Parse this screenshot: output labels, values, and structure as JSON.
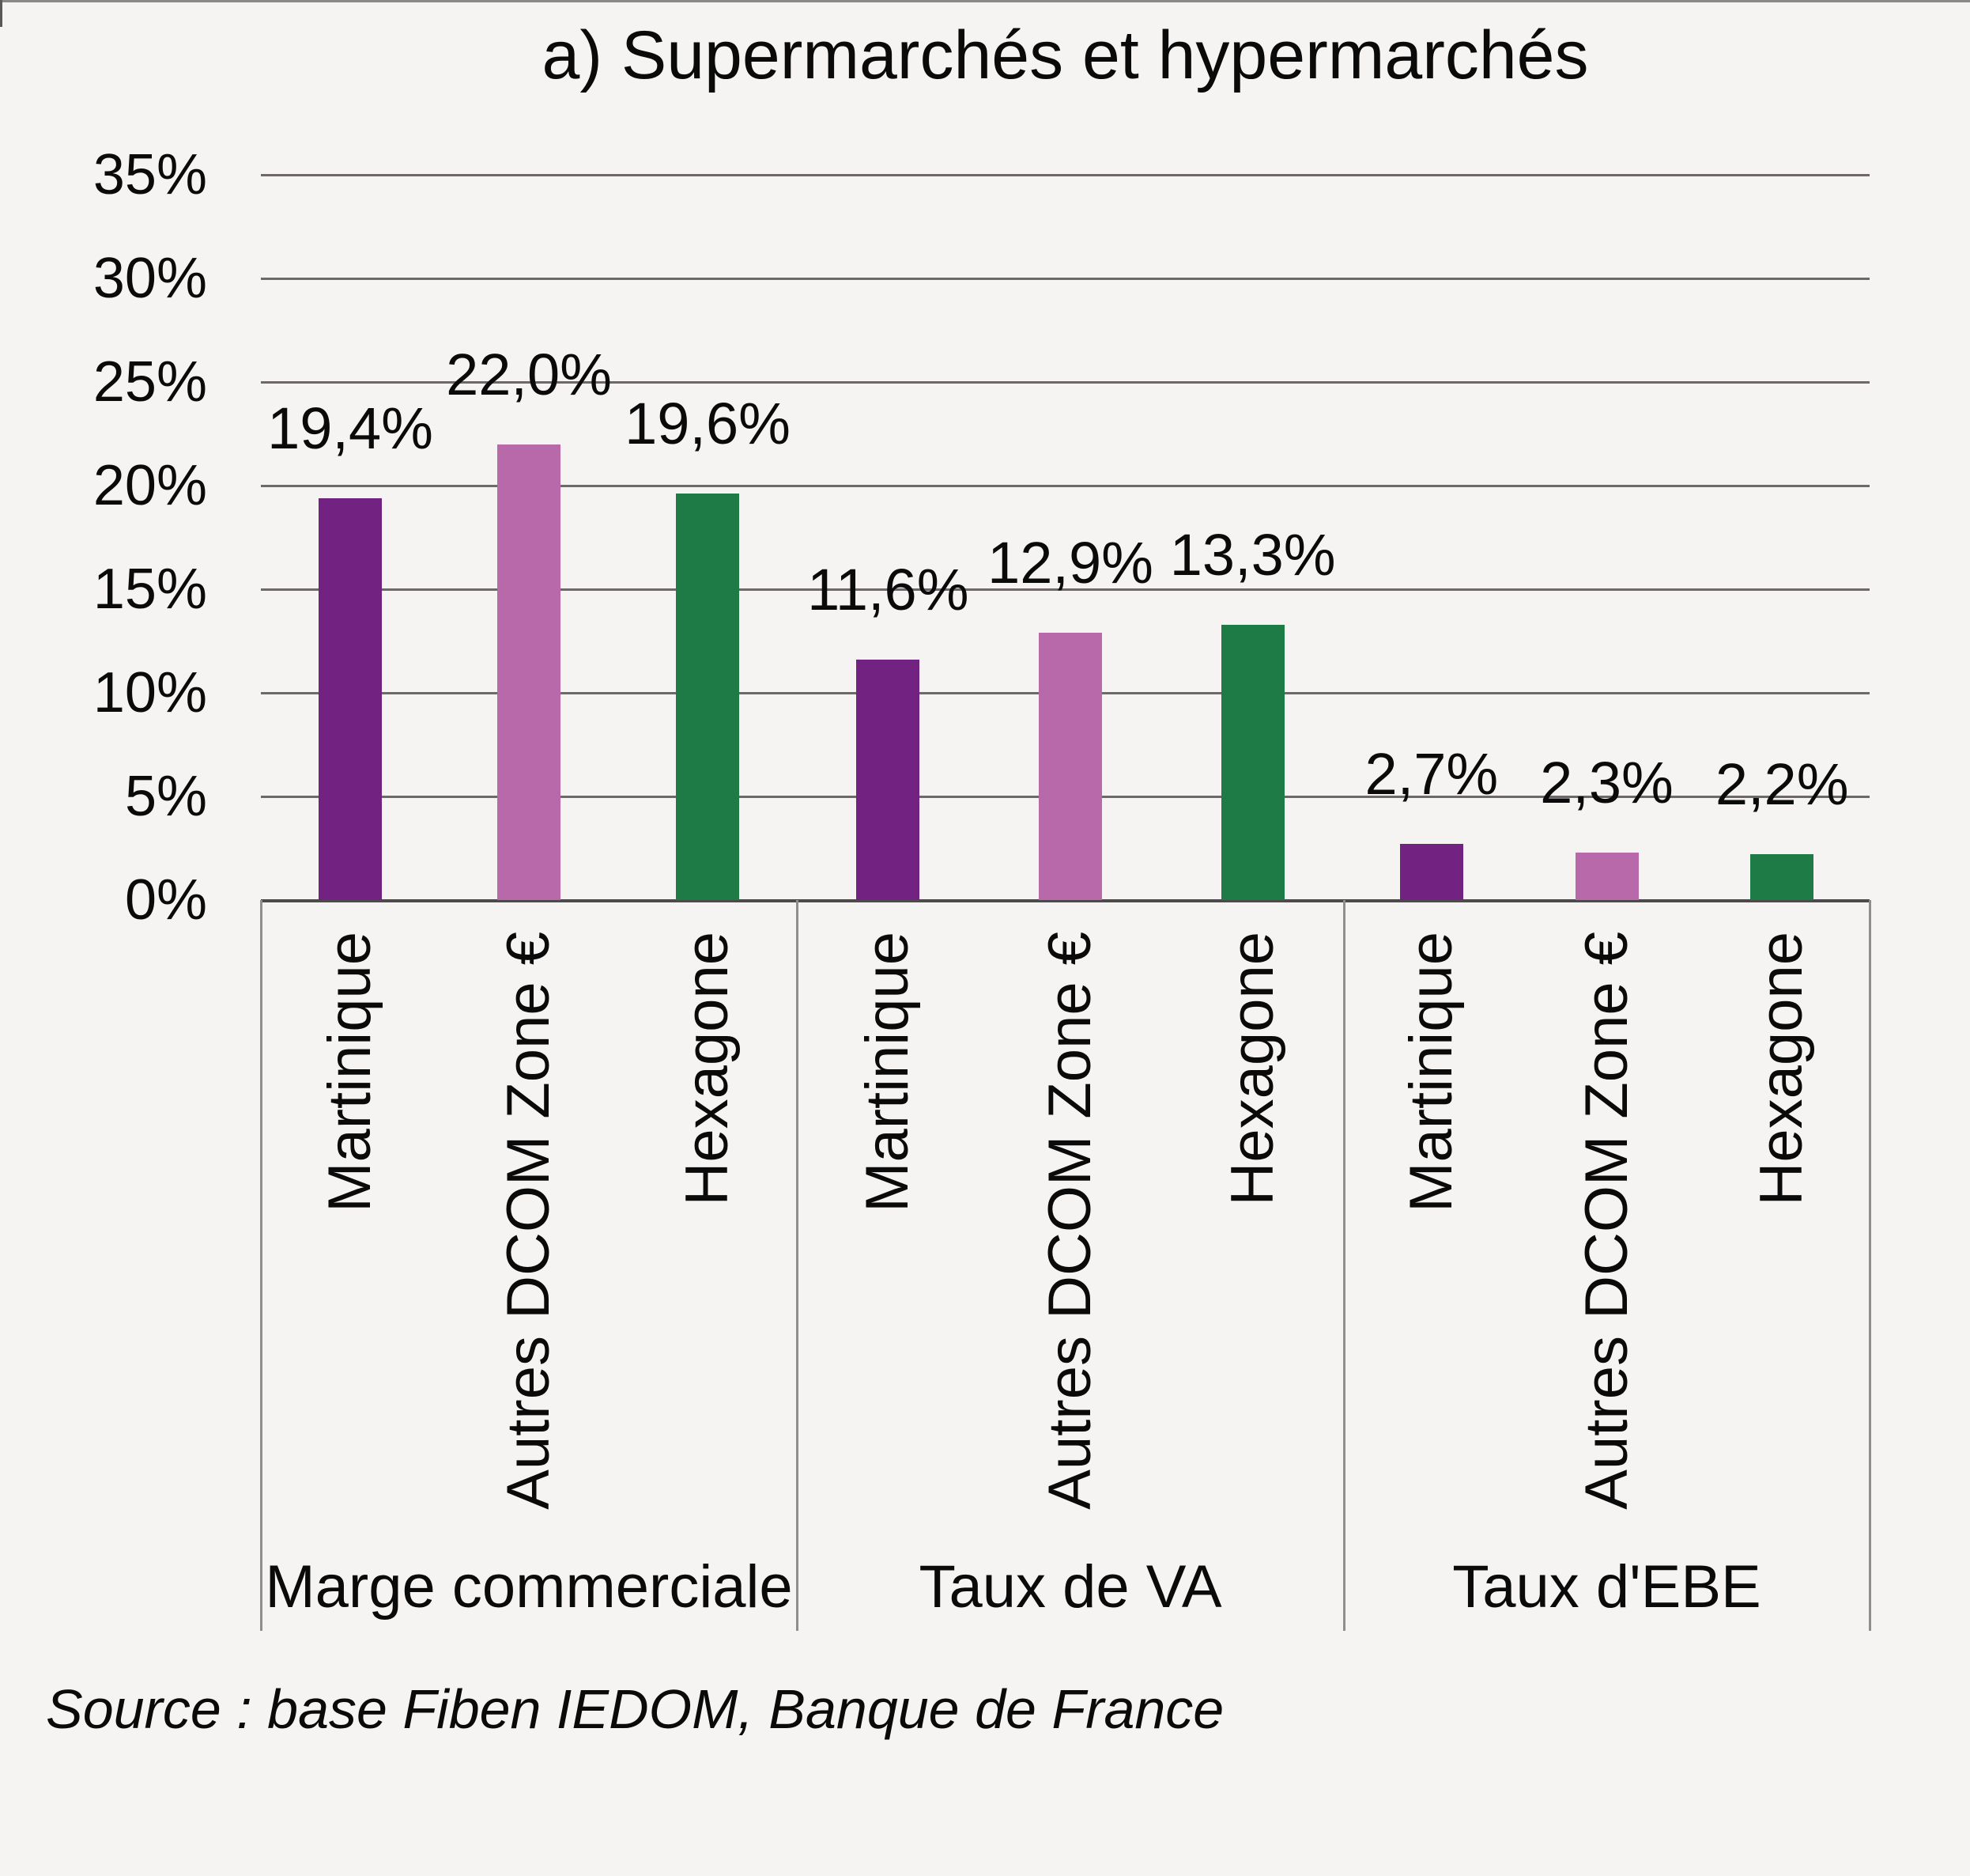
{
  "page": {
    "title": "a) Supermarchés et hypermarchés",
    "source": "Source : base Fiben IEDOM, Banque de France"
  },
  "chart_data": {
    "type": "bar",
    "title": "a) Supermarchés et hypermarchés",
    "categories": [
      "Marge commerciale",
      "Taux de VA",
      "Taux d'EBE"
    ],
    "series": [
      {
        "name": "Martinique",
        "color": "#722382",
        "values": [
          19.4,
          11.6,
          2.7
        ],
        "value_labels": [
          "19,4%",
          "11,6%",
          "2,7%"
        ]
      },
      {
        "name": "Autres DCOM Zone €",
        "color": "#b869aa",
        "values": [
          22.0,
          12.9,
          2.3
        ],
        "value_labels": [
          "22,0%",
          "12,9%",
          "2,3%"
        ]
      },
      {
        "name": "Hexagone",
        "color": "#1e7b45",
        "values": [
          19.6,
          13.3,
          2.2
        ],
        "value_labels": [
          "19,6%",
          "13,3%",
          "2,2%"
        ]
      }
    ],
    "y_ticks": [
      {
        "label": "0%",
        "value": 0
      },
      {
        "label": "5%",
        "value": 5
      },
      {
        "label": "10%",
        "value": 10
      },
      {
        "label": "15%",
        "value": 15
      },
      {
        "label": "20%",
        "value": 20
      },
      {
        "label": "25%",
        "value": 25
      },
      {
        "label": "30%",
        "value": 30
      },
      {
        "label": "35%",
        "value": 35
      }
    ],
    "ylim": [
      0,
      35
    ],
    "grid": true,
    "legend_position": "none",
    "value_label_position": "outside-end",
    "source": "Source : base Fiben IEDOM, Banque de France"
  }
}
